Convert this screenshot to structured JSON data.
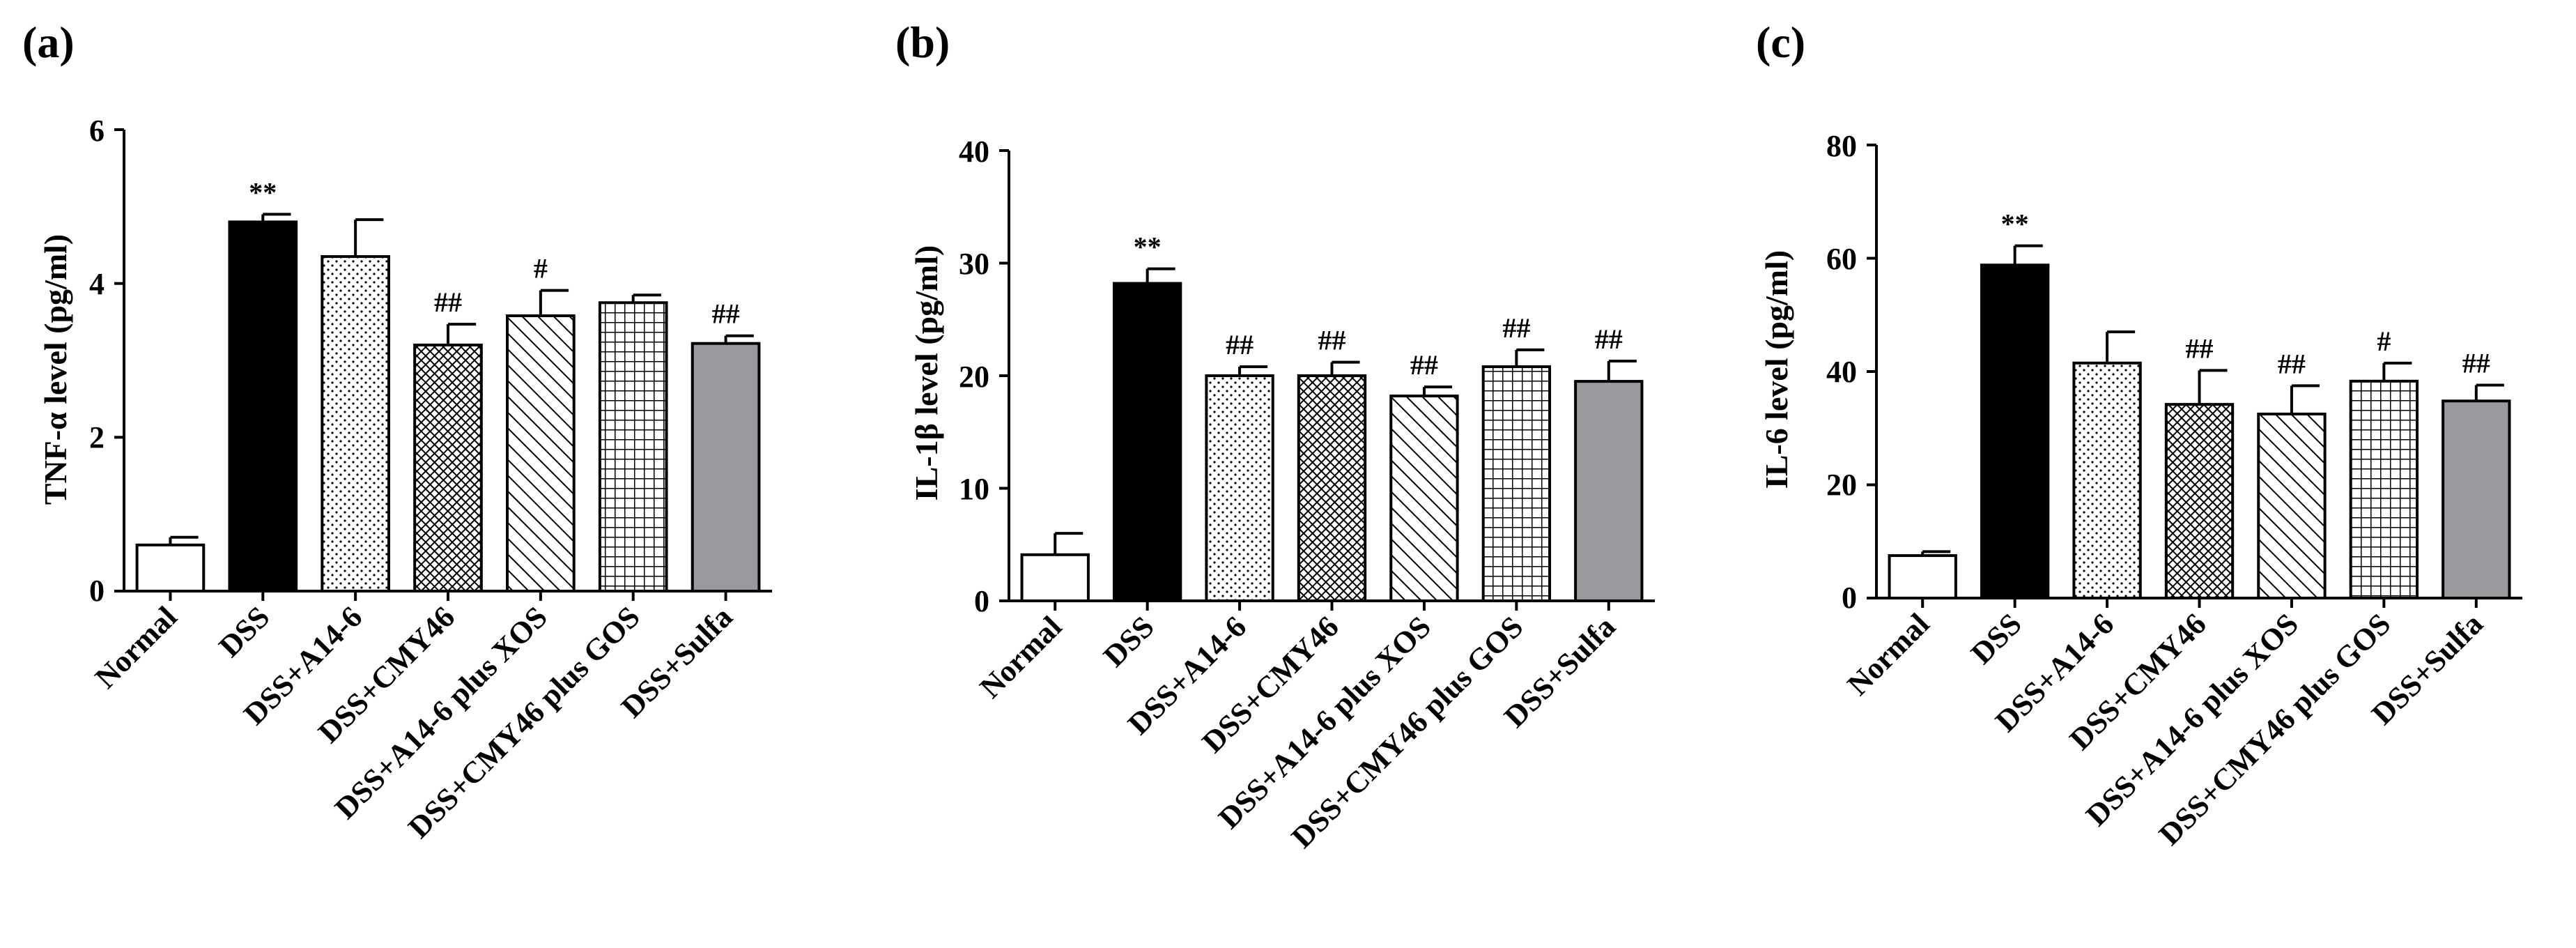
{
  "panels": [
    {
      "panel_label": "(a)",
      "ylabel": "TNF-α level (pg/ml)",
      "yticks": [
        "0",
        "2",
        "4",
        "6"
      ]
    },
    {
      "panel_label": "(b)",
      "ylabel": "IL-1β level (pg/ml)",
      "yticks": [
        "0",
        "10",
        "20",
        "30",
        "40"
      ]
    },
    {
      "panel_label": "(c)",
      "ylabel": "IL-6 level (pg/ml)",
      "yticks": [
        "0",
        "20",
        "40",
        "60",
        "80"
      ]
    }
  ],
  "chart_data": [
    {
      "type": "bar",
      "title": "(a)",
      "xlabel": "",
      "ylabel": "TNF-α level (pg/ml)",
      "ylim": [
        0,
        6
      ],
      "yticks": [
        0,
        2,
        4,
        6
      ],
      "categories": [
        "Normal",
        "DSS",
        "DSS+A14-6",
        "DSS+CMY46",
        "DSS+A14-6 plus XOS",
        "DSS+CMY46 plus GOS",
        "DSS+Sulfa"
      ],
      "values": [
        0.6,
        4.8,
        4.35,
        3.2,
        3.58,
        3.75,
        3.22
      ],
      "errors": [
        0.1,
        0.1,
        0.48,
        0.27,
        0.33,
        0.1,
        0.1
      ],
      "annotations": [
        "",
        "**",
        "",
        "##",
        "#",
        "",
        "##"
      ],
      "patterns": [
        "white",
        "black",
        "dots",
        "crosshatch",
        "diagonal",
        "grid",
        "gray"
      ]
    },
    {
      "type": "bar",
      "title": "(b)",
      "xlabel": "",
      "ylabel": "IL-1β level (pg/ml)",
      "ylim": [
        0,
        40
      ],
      "yticks": [
        0,
        10,
        20,
        30,
        40
      ],
      "categories": [
        "Normal",
        "DSS",
        "DSS+A14-6",
        "DSS+CMY46",
        "DSS+A14-6 plus XOS",
        "DSS+CMY46 plus GOS",
        "DSS+Sulfa"
      ],
      "values": [
        4.1,
        28.2,
        20.0,
        20.0,
        18.2,
        20.8,
        19.5
      ],
      "errors": [
        1.9,
        1.3,
        0.8,
        1.2,
        0.8,
        1.5,
        1.8
      ],
      "annotations": [
        "",
        "**",
        "##",
        "##",
        "##",
        "##",
        "##"
      ],
      "patterns": [
        "white",
        "black",
        "dots",
        "crosshatch",
        "diagonal",
        "grid",
        "gray"
      ]
    },
    {
      "type": "bar",
      "title": "(c)",
      "xlabel": "",
      "ylabel": "IL-6 level (pg/ml)",
      "ylim": [
        0,
        80
      ],
      "yticks": [
        0,
        20,
        40,
        60,
        80
      ],
      "categories": [
        "Normal",
        "DSS",
        "DSS+A14-6",
        "DSS+CMY46",
        "DSS+A14-6 plus XOS",
        "DSS+CMY46 plus GOS",
        "DSS+Sulfa"
      ],
      "values": [
        7.5,
        58.8,
        41.5,
        34.2,
        32.5,
        38.3,
        34.8
      ],
      "errors": [
        0.7,
        3.4,
        5.5,
        6.0,
        5.0,
        3.2,
        2.8
      ],
      "annotations": [
        "",
        "**",
        "",
        "##",
        "##",
        "#",
        "##"
      ],
      "patterns": [
        "white",
        "black",
        "dots",
        "crosshatch",
        "diagonal",
        "grid",
        "gray"
      ]
    }
  ]
}
